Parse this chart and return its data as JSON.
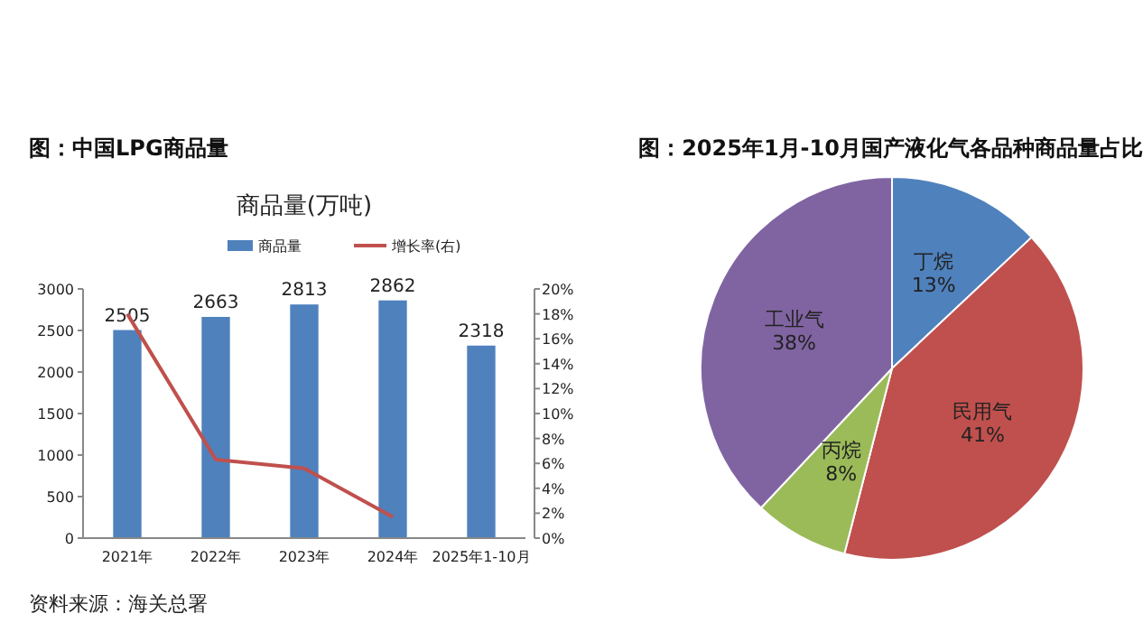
{
  "chart_data": [
    {
      "type": "bar",
      "title": "图：中国LPG商品量",
      "subtitle": "商品量(万吨)",
      "categories": [
        "2021年",
        "2022年",
        "2023年",
        "2024年",
        "2025年1-10月"
      ],
      "series": [
        {
          "name": "商品量",
          "type": "bar",
          "color": "#4f81bd",
          "values": [
            2505,
            2663,
            2813,
            2862,
            2318
          ],
          "value_labels": [
            "2505",
            "2663",
            "2813",
            "2862",
            "2318"
          ]
        },
        {
          "name": "增长率(右)",
          "type": "line",
          "axis": "y2",
          "color": "#c0504d",
          "values": [
            18,
            6.3,
            5.6,
            1.7,
            null
          ]
        }
      ],
      "legend": "top",
      "marker": "none",
      "line_style": "solid",
      "grid": false,
      "ylim": [
        0,
        3000
      ],
      "yticks": [
        0,
        500,
        1000,
        1500,
        2000,
        2500,
        3000
      ],
      "y2lim": [
        0,
        20
      ],
      "y2ticks": [
        {
          "value": 0,
          "label": "0%"
        },
        {
          "value": 2,
          "label": "2%"
        },
        {
          "value": 4,
          "label": "4%"
        },
        {
          "value": 6,
          "label": "6%"
        },
        {
          "value": 8,
          "label": "8%"
        },
        {
          "value": 10,
          "label": "10%"
        },
        {
          "value": 12,
          "label": "12%"
        },
        {
          "value": 14,
          "label": "14%"
        },
        {
          "value": 16,
          "label": "16%"
        },
        {
          "value": 18,
          "label": "18%"
        },
        {
          "value": 20,
          "label": "20%"
        }
      ],
      "annotations": [
        "资料来源：海关总署"
      ]
    },
    {
      "type": "pie",
      "title": "图：2025年1月-10月国产液化气各品种商品量占比",
      "categories": [
        "丁烷",
        "民用气",
        "丙烷",
        "工业气"
      ],
      "values": [
        13,
        41,
        8,
        38
      ],
      "colors": [
        "#4f81bd",
        "#c0504d",
        "#9bbb59",
        "#8064a2"
      ],
      "value_labels": [
        "13%",
        "41%",
        "8%",
        "38%"
      ]
    }
  ]
}
